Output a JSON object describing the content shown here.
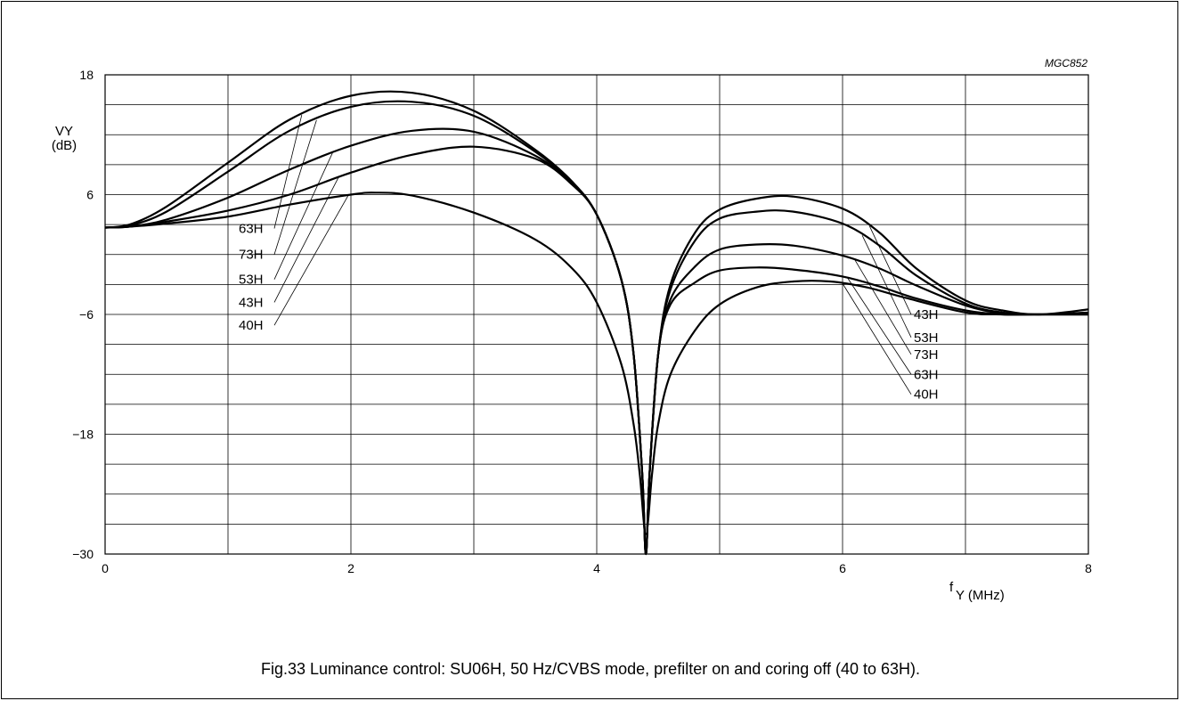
{
  "figure_ref": "MGC852",
  "caption": "Fig.33  Luminance control: SU06H, 50 Hz/CVBS mode, prefilter on and coring off (40 to 63H).",
  "chart_data": {
    "type": "line",
    "title": "",
    "ylabel_line1": "VY",
    "ylabel_line2": "(dB)",
    "xlabel_main": "f",
    "xlabel_sub": "Y (MHz)",
    "xlim": [
      0,
      8
    ],
    "ylim": [
      -30,
      18
    ],
    "xticks": [
      0,
      2,
      4,
      6,
      8
    ],
    "xtick_labels": [
      "0",
      "2",
      "4",
      "6",
      "8"
    ],
    "yticks": [
      18,
      6,
      -6,
      -18,
      -30
    ],
    "ytick_labels": [
      "18",
      "6",
      "−6",
      "−18",
      "−30"
    ],
    "x_gridlines": [
      0,
      1,
      2,
      3,
      4,
      5,
      6,
      7,
      8
    ],
    "y_gridlines": [
      18,
      15,
      12,
      9,
      6,
      3,
      0,
      -3,
      -6,
      -9,
      -12,
      -15,
      -18,
      -21,
      -24,
      -27,
      -30
    ],
    "grid": true,
    "series": [
      {
        "name": "63H",
        "x": [
          0,
          0.2,
          0.5,
          1.0,
          1.5,
          2.0,
          2.5,
          3.0,
          3.5,
          3.8,
          4.0,
          4.2,
          4.3,
          4.37,
          4.4,
          4.43,
          4.5,
          4.6,
          4.8,
          5.0,
          5.3,
          5.6,
          6.0,
          6.3,
          6.6,
          7.0,
          7.3,
          7.6,
          8.0
        ],
        "y": [
          2.7,
          3.0,
          4.8,
          9.2,
          13.5,
          15.9,
          16.2,
          14.4,
          10.5,
          7.3,
          4.0,
          -2.5,
          -10.0,
          -22.0,
          -30.0,
          -22.0,
          -10.0,
          -3.0,
          2.2,
          4.5,
          5.6,
          5.8,
          4.6,
          2.2,
          -1.4,
          -4.6,
          -5.6,
          -6.0,
          -5.5
        ]
      },
      {
        "name": "73H",
        "x": [
          0,
          0.2,
          0.5,
          1.0,
          1.5,
          2.0,
          2.5,
          3.0,
          3.5,
          3.8,
          4.0,
          4.2,
          4.3,
          4.37,
          4.4,
          4.43,
          4.5,
          4.6,
          4.8,
          5.0,
          5.3,
          5.6,
          6.0,
          6.3,
          6.6,
          7.0,
          7.3,
          7.6,
          8.0
        ],
        "y": [
          2.7,
          2.9,
          4.3,
          8.3,
          12.4,
          14.8,
          15.3,
          13.9,
          10.3,
          7.2,
          4.0,
          -2.5,
          -10.0,
          -22.0,
          -30.0,
          -22.0,
          -10.0,
          -3.5,
          1.4,
          3.6,
          4.3,
          4.3,
          3.1,
          0.9,
          -2.1,
          -4.9,
          -5.8,
          -6.0,
          -5.8
        ]
      },
      {
        "name": "53H",
        "x": [
          0,
          0.2,
          0.5,
          1.0,
          1.5,
          2.0,
          2.5,
          3.0,
          3.5,
          3.8,
          4.0,
          4.2,
          4.3,
          4.37,
          4.4,
          4.43,
          4.5,
          4.6,
          4.8,
          5.0,
          5.3,
          5.6,
          6.0,
          6.3,
          6.6,
          7.0,
          7.3,
          7.6,
          8.0
        ],
        "y": [
          2.7,
          2.8,
          3.5,
          5.7,
          8.5,
          10.9,
          12.4,
          12.3,
          9.9,
          7.1,
          4.0,
          -2.5,
          -10.0,
          -22.0,
          -30.0,
          -22.0,
          -10.0,
          -4.5,
          -1.2,
          0.5,
          1.0,
          0.9,
          -0.1,
          -1.4,
          -3.1,
          -5.1,
          -5.9,
          -6.0,
          -6.0
        ]
      },
      {
        "name": "43H",
        "x": [
          0,
          0.2,
          0.5,
          1.0,
          1.5,
          2.0,
          2.5,
          3.0,
          3.5,
          3.8,
          4.0,
          4.2,
          4.3,
          4.37,
          4.4,
          4.43,
          4.5,
          4.6,
          4.8,
          5.0,
          5.3,
          5.6,
          6.0,
          6.3,
          6.6,
          7.0,
          7.3,
          7.6,
          8.0
        ],
        "y": [
          2.7,
          2.8,
          3.3,
          4.4,
          6.0,
          8.2,
          10.0,
          10.8,
          9.6,
          7.0,
          4.0,
          -2.5,
          -10.0,
          -22.0,
          -30.0,
          -22.0,
          -10.0,
          -5.0,
          -2.8,
          -1.6,
          -1.3,
          -1.5,
          -2.2,
          -3.2,
          -4.4,
          -5.6,
          -6.0,
          -6.0,
          -6.0
        ]
      },
      {
        "name": "40H",
        "x": [
          0,
          0.2,
          0.5,
          1.0,
          1.5,
          2.0,
          2.2,
          2.5,
          3.0,
          3.5,
          3.8,
          4.0,
          4.2,
          4.3,
          4.35,
          4.4,
          4.45,
          4.5,
          4.6,
          4.8,
          5.0,
          5.3,
          5.6,
          5.9,
          6.2,
          6.5,
          7.0,
          7.3,
          7.6,
          8.0
        ],
        "y": [
          2.7,
          2.8,
          3.1,
          3.8,
          5.0,
          6.0,
          6.2,
          5.9,
          4.2,
          1.5,
          -1.4,
          -4.8,
          -11.0,
          -17.0,
          -22.0,
          -28.0,
          -22.0,
          -17.0,
          -12.0,
          -7.6,
          -5.0,
          -3.3,
          -2.7,
          -2.7,
          -3.3,
          -4.3,
          -5.8,
          -6.0,
          -6.0,
          -6.0
        ]
      }
    ],
    "labels_left": {
      "names": [
        "63H",
        "73H",
        "53H",
        "43H",
        "40H"
      ],
      "anchor_x": [
        1.6,
        1.72,
        1.85,
        1.9,
        1.98
      ],
      "curve": [
        "63H",
        "73H",
        "53H",
        "43H",
        "40H"
      ]
    },
    "labels_right": {
      "names": [
        "43H",
        "53H",
        "73H",
        "63H",
        "40H"
      ],
      "anchor_x": [
        6.22,
        6.16,
        6.1,
        6.04,
        6.0
      ],
      "curve": [
        "63H",
        "73H",
        "53H",
        "43H",
        "40H"
      ]
    }
  }
}
